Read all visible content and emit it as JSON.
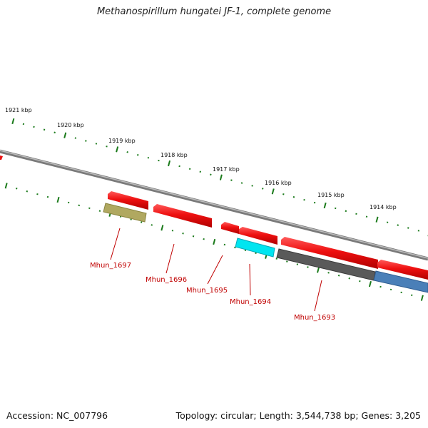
{
  "title": "Methanospirillum hungatei JF-1, complete genome",
  "footer": {
    "accession": "Accession: NC_007796",
    "stats": "Topology: circular; Length: 3,544,738 bp; Genes: 3,205"
  },
  "colors": {
    "tick": "#1a7a1a",
    "backbone": "#8a8a8a",
    "cds_red": "#e81010",
    "label": "#c00000",
    "gene_olive": "#b0a860",
    "gene_cyan": "#00e5f0",
    "gene_dark": "#5a5a5a",
    "gene_blue": "#4a7fb8"
  },
  "scale": {
    "unit": "kbp",
    "labels": [
      "1921 kbp",
      "1920 kbp",
      "1919 kbp",
      "1918 kbp",
      "1917 kbp",
      "1916 kbp",
      "1915 kbp",
      "1914 kbp"
    ]
  },
  "genes": [
    {
      "label": "Mhun_1697"
    },
    {
      "label": "Mhun_1696"
    },
    {
      "label": "Mhun_1695"
    },
    {
      "label": "Mhun_1694"
    },
    {
      "label": "Mhun_1693"
    }
  ]
}
